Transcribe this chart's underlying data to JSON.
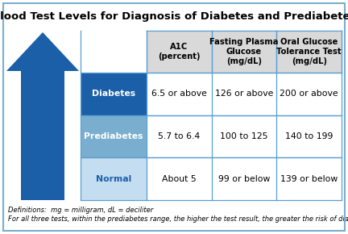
{
  "title": "Blood Test Levels for Diagnosis of Diabetes and Prediabetes",
  "col_headers": [
    "A1C\n(percent)",
    "Fasting Plasma\nGlucose\n(mg/dL)",
    "Oral Glucose\nTolerance Test\n(mg/dL)"
  ],
  "row_labels": [
    "Diabetes",
    "Prediabetes",
    "Normal"
  ],
  "row_label_colors": [
    "#1a5fa8",
    "#7aaece",
    "#c5ddf0"
  ],
  "row_label_text_colors": [
    "#ffffff",
    "#ffffff",
    "#1a5fa8"
  ],
  "cell_data": [
    [
      "6.5 or above",
      "126 or above",
      "200 or above"
    ],
    [
      "5.7 to 6.4",
      "100 to 125",
      "140 to 199"
    ],
    [
      "About 5",
      "99 or below",
      "139 or below"
    ]
  ],
  "cell_bg_color": "#ffffff",
  "header_bg_color": "#d9d9d9",
  "grid_color": "#5a9fd4",
  "arrow_color": "#1a5fa8",
  "background_color": "#ffffff",
  "border_color": "#7aaece",
  "footnote1": "Definitions:  mg = milligram, dL = deciliter",
  "footnote2": "For all three tests, within the prediabetes range, the higher the test result, the greater the risk of diabetes.",
  "title_fontsize": 9.5,
  "header_fontsize": 7.2,
  "cell_fontsize": 7.8,
  "label_fontsize": 7.8,
  "footnote_fontsize": 6.0
}
